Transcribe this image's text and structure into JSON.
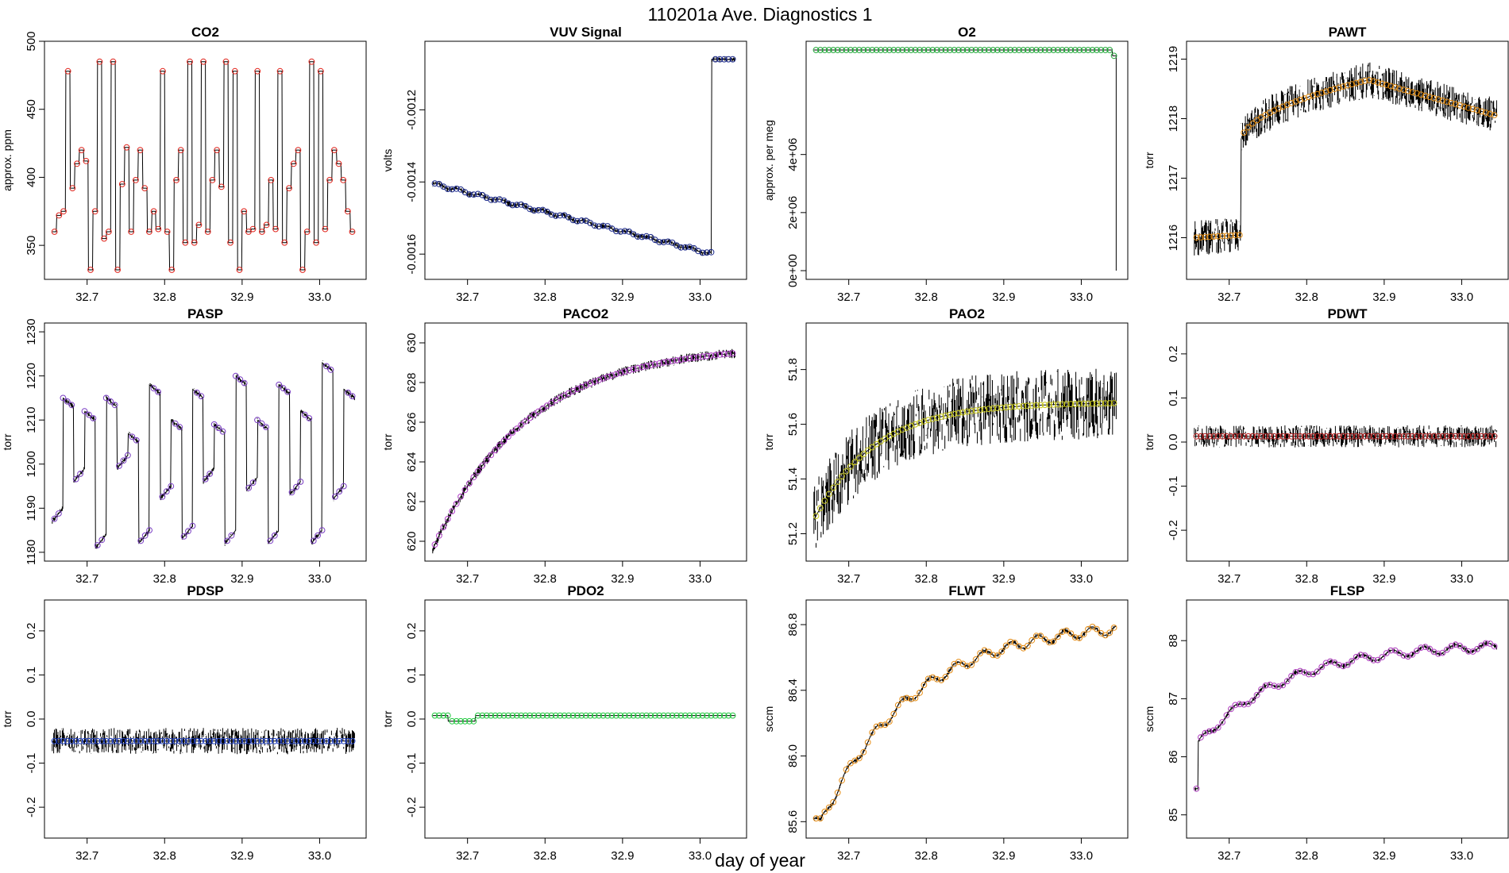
{
  "figure": {
    "title": "110201a   Ave. Diagnostics 1",
    "xlabel": "day of year"
  },
  "chart_data": [
    {
      "type": "line",
      "title": "CO2",
      "ylabel": "approx. ppm",
      "xlim": [
        32.645,
        33.06
      ],
      "ylim": [
        325,
        500
      ],
      "xticks": [
        32.7,
        32.8,
        32.9,
        33.0
      ],
      "xtick_labels": [
        "32.7",
        "32.8",
        "32.9",
        "33.0"
      ],
      "yticks": [
        350,
        400,
        450,
        500
      ],
      "ytick_labels": [
        "350",
        "400",
        "450",
        "500"
      ],
      "line_color": "#000000",
      "marker_color": "#e0251d",
      "pattern": "co2"
    },
    {
      "type": "line",
      "title": "VUV Signal",
      "ylabel": "volts",
      "xlim": [
        32.645,
        33.06
      ],
      "ylim": [
        -0.00167,
        -0.00101
      ],
      "xticks": [
        32.7,
        32.8,
        32.9,
        33.0
      ],
      "xtick_labels": [
        "32.7",
        "32.8",
        "32.9",
        "33.0"
      ],
      "yticks": [
        -0.0016,
        -0.0014,
        -0.0012
      ],
      "ytick_labels": [
        "-0.0016",
        "-0.0014",
        "-0.0012"
      ],
      "line_color": "#000000",
      "marker_color": "#1c2a8c",
      "pattern": "vuv"
    },
    {
      "type": "line",
      "title": "O2",
      "ylabel": "approx. per meg",
      "xlim": [
        32.645,
        33.06
      ],
      "ylim": [
        -300000,
        7900000
      ],
      "xticks": [
        32.7,
        32.8,
        32.9,
        33.0
      ],
      "xtick_labels": [
        "32.7",
        "32.8",
        "32.9",
        "33.0"
      ],
      "yticks": [
        0,
        2000000,
        4000000
      ],
      "ytick_labels": [
        "0e+00",
        "2e+06",
        "4e+06"
      ],
      "line_color": "#000000",
      "marker_color": "#22a83a",
      "pattern": "o2"
    },
    {
      "type": "line",
      "title": "PAWT",
      "ylabel": "torr",
      "xlim": [
        32.645,
        33.06
      ],
      "ylim": [
        1215.3,
        1219.3
      ],
      "xticks": [
        32.7,
        32.8,
        32.9,
        33.0
      ],
      "xtick_labels": [
        "32.7",
        "32.8",
        "32.9",
        "33.0"
      ],
      "yticks": [
        1216,
        1217,
        1218,
        1219
      ],
      "ytick_labels": [
        "1216",
        "1217",
        "1218",
        "1219"
      ],
      "line_color": "#000000",
      "marker_color": "#e08a10",
      "pattern": "pawt"
    },
    {
      "type": "line",
      "title": "PASP",
      "ylabel": "torr",
      "xlim": [
        32.645,
        33.06
      ],
      "ylim": [
        1178,
        1232
      ],
      "xticks": [
        32.7,
        32.8,
        32.9,
        33.0
      ],
      "xtick_labels": [
        "32.7",
        "32.8",
        "32.9",
        "33.0"
      ],
      "yticks": [
        1180,
        1190,
        1200,
        1210,
        1220,
        1230
      ],
      "ytick_labels": [
        "1180",
        "1190",
        "1200",
        "1210",
        "1220",
        "1230"
      ],
      "line_color": "#000000",
      "marker_color": "#7b3fc4",
      "pattern": "pasp"
    },
    {
      "type": "line",
      "title": "PACO2",
      "ylabel": "torr",
      "xlim": [
        32.645,
        33.06
      ],
      "ylim": [
        619,
        631
      ],
      "xticks": [
        32.7,
        32.8,
        32.9,
        33.0
      ],
      "xtick_labels": [
        "32.7",
        "32.8",
        "32.9",
        "33.0"
      ],
      "yticks": [
        620,
        622,
        624,
        626,
        628,
        630
      ],
      "ytick_labels": [
        "620",
        "622",
        "624",
        "626",
        "628",
        "630"
      ],
      "line_color": "#000000",
      "marker_color": "#b040c8",
      "pattern": "paco2"
    },
    {
      "type": "line",
      "title": "PAO2",
      "ylabel": "torr",
      "xlim": [
        32.645,
        33.06
      ],
      "ylim": [
        51.1,
        51.97
      ],
      "xticks": [
        32.7,
        32.8,
        32.9,
        33.0
      ],
      "xtick_labels": [
        "32.7",
        "32.8",
        "32.9",
        "33.0"
      ],
      "yticks": [
        51.2,
        51.4,
        51.6,
        51.8
      ],
      "ytick_labels": [
        "51.2",
        "51.4",
        "51.6",
        "51.8"
      ],
      "line_color": "#000000",
      "marker_color": "#c8c81e",
      "pattern": "pao2"
    },
    {
      "type": "line",
      "title": "PDWT",
      "ylabel": "torr",
      "xlim": [
        32.645,
        33.06
      ],
      "ylim": [
        -0.27,
        0.27
      ],
      "xticks": [
        32.7,
        32.8,
        32.9,
        33.0
      ],
      "xtick_labels": [
        "32.7",
        "32.8",
        "32.9",
        "33.0"
      ],
      "yticks": [
        -0.2,
        -0.1,
        0.0,
        0.1,
        0.2
      ],
      "ytick_labels": [
        "-0.2",
        "-0.1",
        "0.0",
        "0.1",
        "0.2"
      ],
      "line_color": "#000000",
      "marker_color": "#b02020",
      "pattern": "pdwt"
    },
    {
      "type": "line",
      "title": "PDSP",
      "ylabel": "torr",
      "xlim": [
        32.645,
        33.06
      ],
      "ylim": [
        -0.27,
        0.27
      ],
      "xticks": [
        32.7,
        32.8,
        32.9,
        33.0
      ],
      "xtick_labels": [
        "32.7",
        "32.8",
        "32.9",
        "33.0"
      ],
      "yticks": [
        -0.2,
        -0.1,
        0.0,
        0.1,
        0.2
      ],
      "ytick_labels": [
        "-0.2",
        "-0.1",
        "0.0",
        "0.1",
        "0.2"
      ],
      "line_color": "#000000",
      "marker_color": "#2040c0",
      "pattern": "pdsp"
    },
    {
      "type": "line",
      "title": "PDO2",
      "ylabel": "torr",
      "xlim": [
        32.645,
        33.06
      ],
      "ylim": [
        -0.27,
        0.27
      ],
      "xticks": [
        32.7,
        32.8,
        32.9,
        33.0
      ],
      "xtick_labels": [
        "32.7",
        "32.8",
        "32.9",
        "33.0"
      ],
      "yticks": [
        -0.2,
        -0.1,
        0.0,
        0.1,
        0.2
      ],
      "ytick_labels": [
        "-0.2",
        "-0.1",
        "0.0",
        "0.1",
        "0.2"
      ],
      "line_color": "#000000",
      "marker_color": "#22c840",
      "pattern": "pdo2"
    },
    {
      "type": "line",
      "title": "FLWT",
      "ylabel": "sccm",
      "xlim": [
        32.645,
        33.06
      ],
      "ylim": [
        85.5,
        86.95
      ],
      "xticks": [
        32.7,
        32.8,
        32.9,
        33.0
      ],
      "xtick_labels": [
        "32.7",
        "32.8",
        "32.9",
        "33.0"
      ],
      "yticks": [
        85.6,
        86.0,
        86.4,
        86.8
      ],
      "ytick_labels": [
        "85.6",
        "86.0",
        "86.4",
        "86.8"
      ],
      "line_color": "#000000",
      "marker_color": "#e8901a",
      "pattern": "flwt"
    },
    {
      "type": "line",
      "title": "FLSP",
      "ylabel": "sccm",
      "xlim": [
        32.645,
        33.06
      ],
      "ylim": [
        84.6,
        88.7
      ],
      "xticks": [
        32.7,
        32.8,
        32.9,
        33.0
      ],
      "xtick_labels": [
        "32.7",
        "32.8",
        "32.9",
        "33.0"
      ],
      "yticks": [
        85,
        86,
        87,
        88
      ],
      "ytick_labels": [
        "85",
        "86",
        "87",
        "88"
      ],
      "line_color": "#000000",
      "marker_color": "#b040c0",
      "pattern": "flsp"
    }
  ]
}
